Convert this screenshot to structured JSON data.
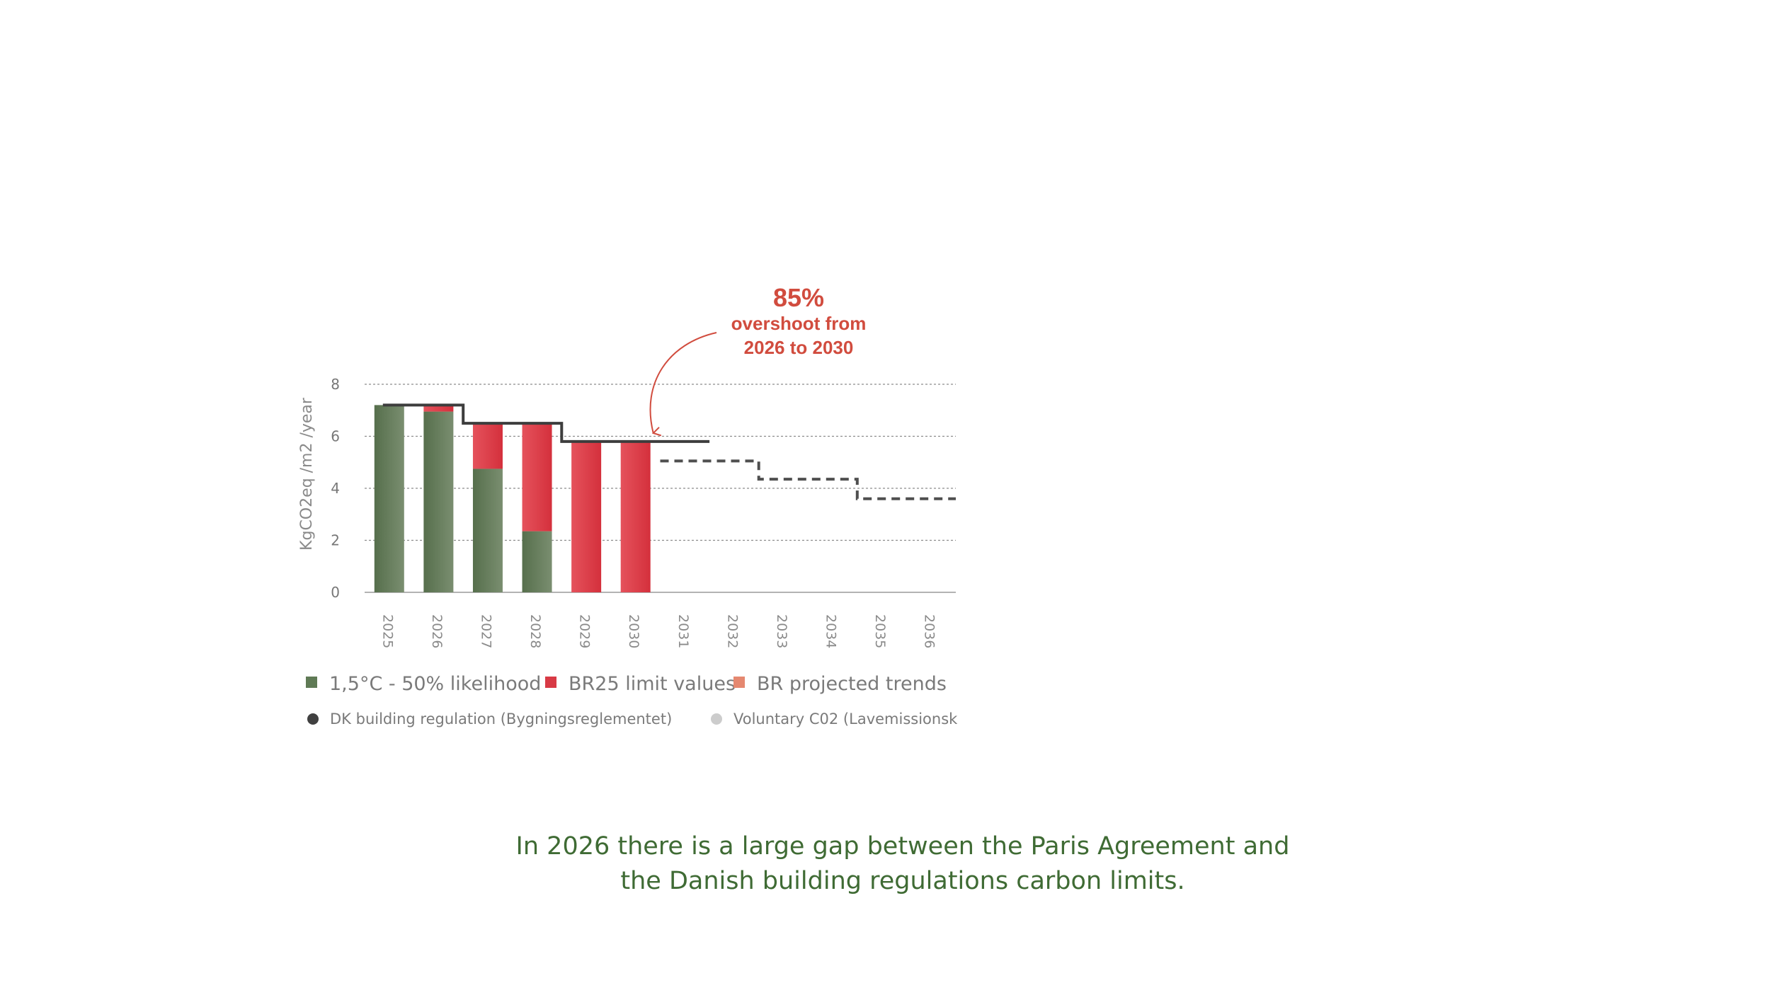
{
  "chart_data": {
    "type": "bar",
    "stacked": true,
    "categories": [
      "2025",
      "2026",
      "2027",
      "2028",
      "2029",
      "2030",
      "2031",
      "2032",
      "2033",
      "2034",
      "2035",
      "2036"
    ],
    "ylabel": "KgCO2eq /m2 /year",
    "ylim": [
      0,
      8
    ],
    "yticks": [
      0,
      2,
      4,
      6,
      8
    ],
    "grid": true,
    "series": [
      {
        "name": "1,5°C - 50% likelihood",
        "color": "#5f7a55",
        "values": [
          7.2,
          6.95,
          4.75,
          2.35,
          0,
          0,
          null,
          null,
          null,
          null,
          null,
          null
        ]
      },
      {
        "name": "BR25 limit values",
        "color": "#d83a45",
        "values": [
          0,
          0.25,
          1.75,
          4.15,
          5.8,
          5.8,
          null,
          null,
          null,
          null,
          null,
          null
        ]
      }
    ],
    "lines": [
      {
        "name": "DK building regulation (Bygningsreglementet)",
        "color": "#404040",
        "style": "solid",
        "steps": [
          {
            "from": "2025",
            "to": "2026",
            "value": 7.2
          },
          {
            "from": "2027",
            "to": "2028",
            "value": 6.5
          },
          {
            "from": "2029",
            "to": "2031",
            "value": 5.8
          }
        ]
      },
      {
        "name": "BR projected trends",
        "color": "#555555",
        "style": "dashed",
        "steps": [
          {
            "from": "2031",
            "to": "2032",
            "value": 5.05
          },
          {
            "from": "2033",
            "to": "2034",
            "value": 4.35
          },
          {
            "from": "2035",
            "to": "2036",
            "value": 3.6
          }
        ]
      }
    ],
    "legend": {
      "row1": [
        {
          "label": "1,5°C - 50% likelihood",
          "color": "#5f7a55",
          "marker": "square"
        },
        {
          "label": "BR25 limit values",
          "color": "#d83a45",
          "marker": "square"
        },
        {
          "label": "BR projected trends",
          "color": "#e58870",
          "marker": "square"
        }
      ],
      "row2": [
        {
          "label": "DK building regulation (Bygningsreglementet)",
          "color": "#404040",
          "marker": "circle"
        },
        {
          "label": "Voluntary C02 (Lavemissionsk",
          "color": "#cccccc",
          "marker": "circle"
        }
      ]
    },
    "annotation": {
      "value": "85%",
      "line1": "overshoot from",
      "line2": "2026 to 2030",
      "color": "#d14c3e",
      "target_category": "2030"
    }
  },
  "caption": {
    "line1": "In 2026 there is a large gap between the Paris Agreement and",
    "line2": "the Danish building regulations carbon limits."
  }
}
